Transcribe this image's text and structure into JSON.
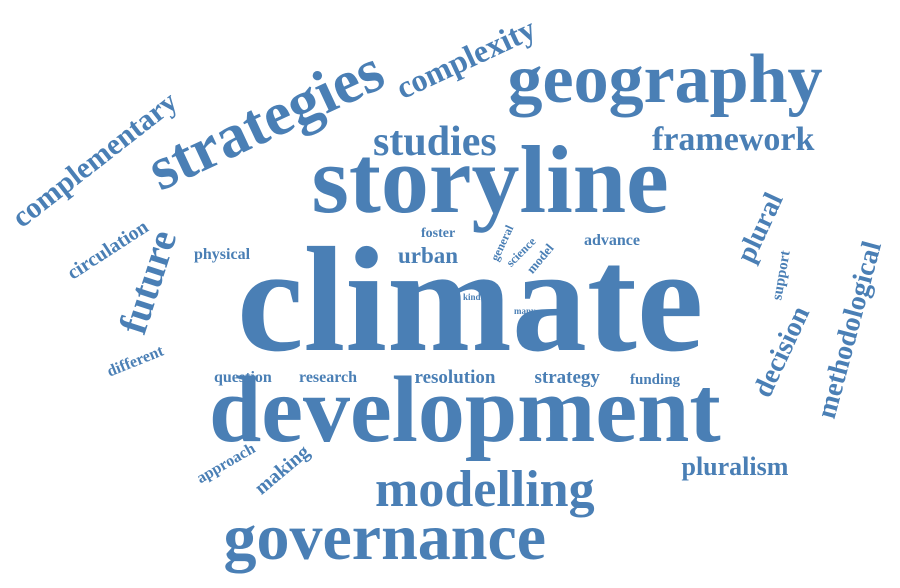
{
  "word_cloud": {
    "color": "#4a7fb5",
    "words": [
      {
        "text": "climate",
        "size": "largest"
      },
      {
        "text": "storyline",
        "size": "very-large"
      },
      {
        "text": "development",
        "size": "very-large"
      },
      {
        "text": "geography",
        "size": "large"
      },
      {
        "text": "strategies",
        "size": "large"
      },
      {
        "text": "governance",
        "size": "large"
      },
      {
        "text": "modelling",
        "size": "large"
      },
      {
        "text": "complexity",
        "size": "medium"
      },
      {
        "text": "studies",
        "size": "medium"
      },
      {
        "text": "framework",
        "size": "medium"
      },
      {
        "text": "complementary",
        "size": "medium"
      },
      {
        "text": "future",
        "size": "medium"
      },
      {
        "text": "methodological",
        "size": "medium"
      },
      {
        "text": "plural",
        "size": "medium"
      },
      {
        "text": "decision",
        "size": "medium"
      },
      {
        "text": "pluralism",
        "size": "medium"
      },
      {
        "text": "circulation",
        "size": "small"
      },
      {
        "text": "urban",
        "size": "small"
      },
      {
        "text": "physical",
        "size": "small"
      },
      {
        "text": "foster",
        "size": "small"
      },
      {
        "text": "general",
        "size": "small"
      },
      {
        "text": "science",
        "size": "small"
      },
      {
        "text": "model",
        "size": "small"
      },
      {
        "text": "advance",
        "size": "small"
      },
      {
        "text": "support",
        "size": "small"
      },
      {
        "text": "kind",
        "size": "tiny"
      },
      {
        "text": "many",
        "size": "tiny"
      },
      {
        "text": "different",
        "size": "small"
      },
      {
        "text": "question",
        "size": "small"
      },
      {
        "text": "research",
        "size": "small"
      },
      {
        "text": "resolution",
        "size": "small"
      },
      {
        "text": "strategy",
        "size": "small"
      },
      {
        "text": "funding",
        "size": "small"
      },
      {
        "text": "approach",
        "size": "small"
      },
      {
        "text": "making",
        "size": "small"
      }
    ]
  }
}
